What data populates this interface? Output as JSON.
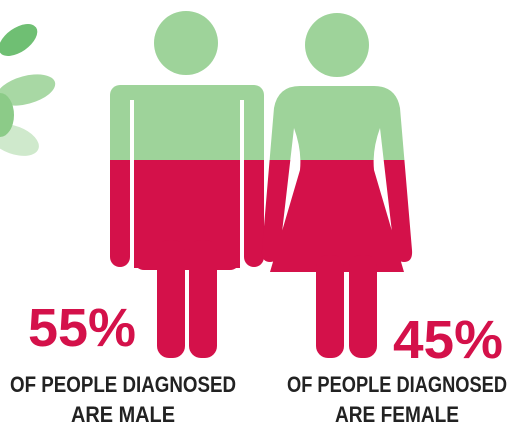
{
  "stats": [
    {
      "percent": "55%",
      "line1": "OF PEOPLE DIAGNOSED",
      "line2": "ARE MALE"
    },
    {
      "percent": "45%",
      "line1": "OF PEOPLE DIAGNOSED",
      "line2": "ARE FEMALE"
    }
  ]
}
